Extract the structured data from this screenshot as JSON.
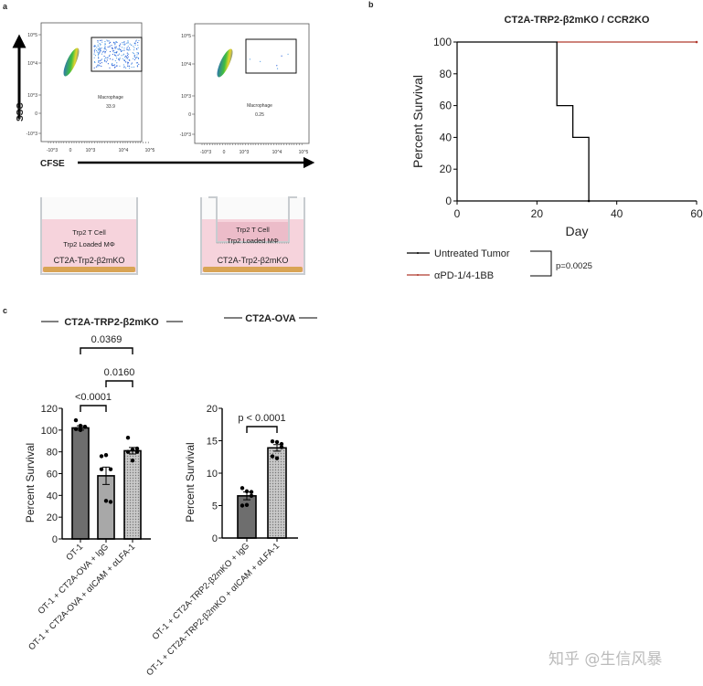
{
  "panel_labels": {
    "a": "a",
    "b": "b",
    "c": "c"
  },
  "panel_a": {
    "y_axis_label": "SSC",
    "x_axis_label": "CFSE",
    "y_ticks": [
      "10^5",
      "10^4",
      "10^3",
      "0",
      "-10^3"
    ],
    "x_ticks": [
      "-10^3",
      "0",
      "10^3",
      "10^4",
      "10^5"
    ],
    "plots": [
      {
        "gate_name": "Macrophage",
        "gate_value": "33.9"
      },
      {
        "gate_name": "Macrophage",
        "gate_value": "0.25"
      }
    ],
    "wells": [
      {
        "line1": "Trp2 T Cell",
        "line2": "Trp2 Loaded MΦ",
        "bottom": "CT2A-Trp2-β2mKO"
      },
      {
        "line1": "Trp2 T Cell",
        "line2": "Trp2 Loaded MΦ",
        "bottom": "CT2A-Trp2-β2mKO"
      }
    ],
    "colors": {
      "medium": "#f6d3dc",
      "insert": "#ecbcc9",
      "cells": "#d9a455"
    }
  },
  "chart_data": [
    {
      "type": "line",
      "subtype": "kaplan-meier",
      "title": "CT2A-TRP2-β2mKO / CCR2KO",
      "xlabel": "Day",
      "ylabel": "Percent Survival",
      "xlim": [
        0,
        60
      ],
      "ylim": [
        0,
        100
      ],
      "x_ticks": [
        "0",
        "20",
        "40",
        "60"
      ],
      "y_ticks": [
        "0",
        "20",
        "40",
        "60",
        "80",
        "100"
      ],
      "series": [
        {
          "name": "Untreated Tumor",
          "color": "#000000",
          "steps": [
            [
              0,
              100
            ],
            [
              25,
              60
            ],
            [
              29,
              40
            ],
            [
              33,
              0
            ]
          ]
        },
        {
          "name": "αPD-1/4-1BB",
          "color": "#b03a2e",
          "steps": [
            [
              0,
              100
            ],
            [
              60,
              100
            ]
          ]
        }
      ],
      "annotation": "p=0.0025",
      "legend_position": "bottom"
    },
    {
      "type": "bar",
      "title": "CT2A-TRP2-β2mKO",
      "ylabel": "Percent Survival",
      "ylim": [
        0,
        120
      ],
      "y_ticks": [
        "0",
        "20",
        "40",
        "60",
        "80",
        "100",
        "120"
      ],
      "categories": [
        "OT-1",
        "OT-1 + CT2A-OVA + IgG",
        "OT-1 + CT2A-OVA + αICAM + αLFA-1"
      ],
      "values": [
        102,
        58,
        81
      ],
      "errors": [
        2,
        8,
        3
      ],
      "points": [
        [
          109,
          104,
          103,
          101,
          100,
          103
        ],
        [
          76,
          77,
          64,
          64,
          35,
          34
        ],
        [
          93,
          82,
          80,
          80,
          72,
          83
        ]
      ],
      "fills": [
        "#6e6e6e",
        "#a8a8a8",
        "dotted"
      ],
      "comparisons": [
        {
          "from": 0,
          "to": 1,
          "label": "<0.0001"
        },
        {
          "from": 1,
          "to": 2,
          "label": "0.0160"
        },
        {
          "from": 0,
          "to": 2,
          "label": "0.0369"
        }
      ]
    },
    {
      "type": "bar",
      "title": "CT2A-OVA",
      "ylabel": "Percent Survival",
      "ylim": [
        0,
        20
      ],
      "y_ticks": [
        "0",
        "5",
        "10",
        "15",
        "20"
      ],
      "categories": [
        "OT-1  + CT2A-TRP2-β2mKO + IgG",
        "OT-1 + CT2A-TRP2-β2mKO + αICAM + αLFA-1"
      ],
      "values": [
        6.5,
        13.9
      ],
      "errors": [
        0.6,
        0.5
      ],
      "points": [
        [
          7.7,
          7.2,
          7.1,
          5.0,
          5.1,
          6.5
        ],
        [
          14.9,
          14.8,
          14.5,
          12.6,
          12.3,
          14.0
        ]
      ],
      "fills": [
        "#6e6e6e",
        "dotted"
      ],
      "comparisons": [
        {
          "from": 0,
          "to": 1,
          "label": "p < 0.0001"
        }
      ]
    }
  ],
  "watermark": "知乎 @生信风暴"
}
